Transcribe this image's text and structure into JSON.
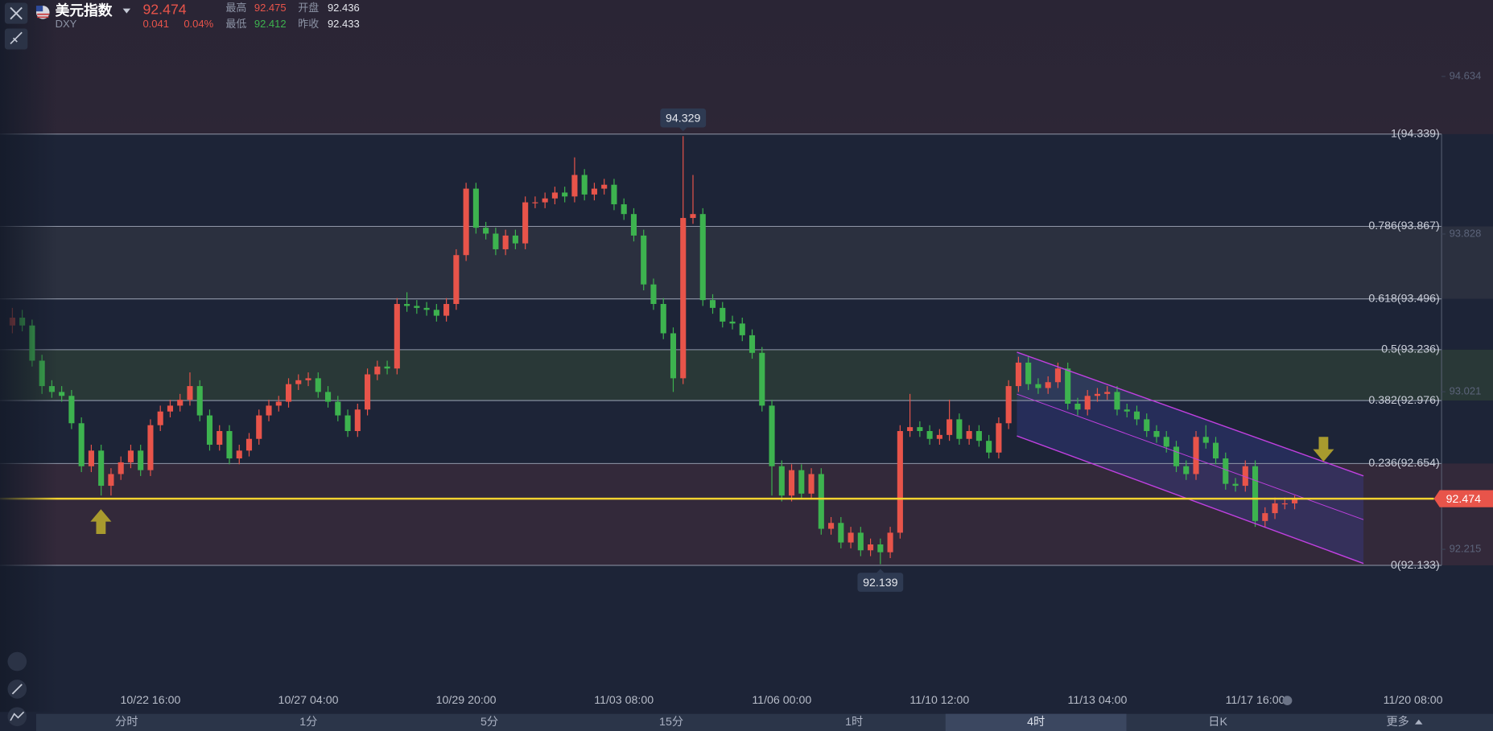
{
  "header": {
    "name": "美元指数",
    "symbol": "DXY",
    "price": 92.474,
    "change": 0.041,
    "change_pct": "0.04%",
    "high_label": "最高",
    "high": 92.475,
    "open_label": "开盘",
    "open": 92.436,
    "low_label": "最低",
    "low": 92.412,
    "prev_close_label": "昨收",
    "prev_close": 92.433
  },
  "tabs": [
    "分时",
    "1分",
    "5分",
    "15分",
    "1时",
    "4时",
    "日K",
    "更多"
  ],
  "chart_data": {
    "type": "candlestick",
    "up_color": "#e8544a",
    "down_color": "#3db34f",
    "ylim": [
      91.383,
      95.025
    ],
    "yticks": [
      94.634,
      93.828,
      93.021,
      92.215
    ],
    "current_price": 92.474,
    "annotations": [
      94.329,
      92.139
    ],
    "fib_levels": [
      {
        "value": 94.339,
        "label": "1(94.339)"
      },
      {
        "value": 93.867,
        "label": "0.786(93.867)"
      },
      {
        "value": 93.496,
        "label": "0.618(93.496)"
      },
      {
        "value": 93.236,
        "label": "0.5(93.236)"
      },
      {
        "value": 92.976,
        "label": "0.382(92.976)"
      },
      {
        "value": 92.654,
        "label": "0.236(92.654)"
      },
      {
        "value": 92.133,
        "label": "0(92.133)"
      }
    ],
    "categories": [
      null,
      null,
      null,
      null,
      null,
      null,
      null,
      null,
      null,
      null,
      null,
      null,
      null,
      null,
      "10/22 16:00",
      null,
      null,
      null,
      null,
      null,
      null,
      null,
      null,
      null,
      null,
      null,
      null,
      null,
      null,
      null,
      "10/27 04:00",
      null,
      null,
      null,
      null,
      null,
      null,
      null,
      null,
      null,
      null,
      null,
      null,
      null,
      null,
      null,
      "10/29 20:00",
      null,
      null,
      null,
      null,
      null,
      null,
      null,
      null,
      null,
      null,
      null,
      null,
      null,
      null,
      null,
      "11/03 08:00",
      null,
      null,
      null,
      null,
      null,
      null,
      null,
      null,
      null,
      null,
      null,
      null,
      null,
      null,
      null,
      "11/06 00:00",
      null,
      null,
      null,
      null,
      null,
      null,
      null,
      null,
      null,
      null,
      null,
      null,
      null,
      null,
      null,
      "11/10 12:00",
      null,
      null,
      null,
      null,
      null,
      null,
      null,
      null,
      null,
      null,
      null,
      null,
      null,
      null,
      null,
      "11/13 04:00",
      null,
      null,
      null,
      null,
      null,
      null,
      null,
      null,
      null,
      null,
      null,
      null,
      null,
      null,
      null,
      "11/17 16:00",
      null,
      null,
      null,
      null,
      null,
      null,
      null,
      null,
      null,
      null,
      null,
      null,
      null,
      null,
      null,
      "11/20 08:00"
    ],
    "open": [
      93.36,
      93.4,
      93.36,
      93.18,
      93.05,
      93.02,
      93.0,
      92.86,
      92.64,
      92.72,
      92.54,
      92.6,
      92.66,
      92.72,
      92.62,
      92.85,
      92.92,
      92.95,
      92.98,
      93.05,
      92.9,
      92.75,
      92.82,
      92.68,
      92.72,
      92.78,
      92.9,
      92.95,
      92.97,
      93.06,
      93.08,
      93.09,
      93.02,
      92.97,
      92.9,
      92.82,
      92.93,
      93.11,
      93.15,
      93.14,
      93.47,
      93.46,
      93.45,
      93.44,
      93.41,
      93.47,
      93.72,
      94.06,
      93.86,
      93.83,
      93.75,
      93.82,
      93.78,
      93.99,
      93.99,
      94.01,
      94.04,
      94.02,
      94.13,
      94.03,
      94.06,
      94.08,
      93.98,
      93.93,
      93.82,
      93.57,
      93.47,
      93.32,
      93.09,
      93.91,
      93.93,
      93.49,
      93.45,
      93.38,
      93.37,
      93.31,
      93.22,
      92.95,
      92.64,
      92.49,
      92.62,
      92.5,
      92.6,
      92.32,
      92.35,
      92.25,
      92.3,
      92.21,
      92.24,
      92.2,
      92.3,
      92.82,
      92.84,
      92.82,
      92.78,
      92.8,
      92.88,
      92.78,
      92.82,
      92.77,
      92.71,
      92.86,
      93.05,
      93.17,
      93.06,
      93.04,
      93.07,
      93.14,
      92.96,
      92.93,
      93.0,
      93.01,
      93.02,
      92.93,
      92.92,
      92.88,
      92.82,
      92.79,
      92.74,
      92.64,
      92.6,
      92.79,
      92.76,
      92.68,
      92.55,
      92.54,
      92.64,
      92.36,
      92.4,
      92.45,
      92.45,
      null,
      null,
      null,
      null,
      null,
      null,
      null,
      null,
      null,
      null,
      null,
      null
    ],
    "high": [
      93.45,
      93.44,
      93.39,
      93.21,
      93.08,
      93.05,
      93.03,
      92.89,
      92.75,
      92.75,
      92.63,
      92.69,
      92.75,
      92.75,
      92.88,
      92.95,
      92.98,
      93.01,
      93.12,
      93.08,
      92.93,
      92.85,
      92.85,
      92.75,
      92.81,
      92.93,
      92.98,
      93.0,
      93.09,
      93.11,
      93.12,
      93.12,
      93.05,
      93.0,
      92.93,
      92.96,
      93.14,
      93.18,
      93.18,
      93.5,
      93.53,
      93.49,
      93.48,
      93.47,
      93.5,
      93.75,
      94.09,
      94.09,
      93.89,
      93.86,
      93.85,
      93.85,
      94.02,
      94.02,
      94.04,
      94.07,
      94.07,
      94.22,
      94.16,
      94.09,
      94.11,
      94.11,
      94.01,
      93.96,
      93.85,
      93.6,
      93.5,
      93.35,
      94.329,
      94.13,
      93.96,
      93.52,
      93.48,
      93.41,
      93.4,
      93.34,
      93.25,
      92.98,
      92.67,
      92.65,
      92.65,
      92.63,
      92.63,
      92.38,
      92.38,
      92.33,
      92.33,
      92.27,
      92.27,
      92.33,
      92.85,
      93.01,
      92.87,
      92.85,
      92.83,
      92.98,
      92.91,
      92.85,
      92.85,
      92.8,
      92.89,
      93.08,
      93.2,
      93.2,
      93.09,
      93.1,
      93.17,
      93.17,
      92.99,
      93.03,
      93.04,
      93.05,
      93.05,
      92.96,
      92.95,
      92.91,
      92.85,
      92.82,
      92.77,
      92.67,
      92.82,
      92.85,
      92.79,
      92.71,
      92.58,
      92.67,
      92.67,
      92.43,
      92.48,
      92.48,
      92.49,
      null,
      null,
      null,
      null,
      null,
      null,
      null,
      null,
      null,
      null,
      null,
      null
    ],
    "low": [
      93.32,
      93.33,
      93.15,
      93.01,
      92.99,
      92.97,
      92.83,
      92.61,
      92.61,
      92.49,
      92.49,
      92.57,
      92.63,
      92.59,
      92.59,
      92.82,
      92.89,
      92.92,
      92.95,
      92.87,
      92.72,
      92.72,
      92.65,
      92.65,
      92.69,
      92.75,
      92.87,
      92.92,
      92.94,
      93.03,
      93.05,
      92.99,
      92.94,
      92.87,
      92.79,
      92.79,
      92.9,
      93.08,
      93.11,
      93.11,
      93.43,
      93.42,
      93.41,
      93.38,
      93.38,
      93.44,
      93.69,
      93.83,
      93.8,
      93.72,
      93.72,
      93.75,
      93.75,
      93.96,
      93.96,
      93.98,
      93.99,
      93.99,
      94.0,
      94.0,
      94.03,
      93.95,
      93.9,
      93.79,
      93.54,
      93.44,
      93.29,
      93.02,
      93.06,
      93.88,
      93.46,
      93.42,
      93.35,
      93.34,
      93.28,
      93.19,
      92.92,
      92.49,
      92.46,
      92.46,
      92.47,
      92.47,
      92.29,
      92.29,
      92.22,
      92.22,
      92.18,
      92.18,
      92.139,
      92.17,
      92.27,
      92.79,
      92.79,
      92.75,
      92.75,
      92.77,
      92.75,
      92.75,
      92.74,
      92.68,
      92.68,
      92.83,
      93.02,
      93.03,
      93.01,
      93.01,
      93.04,
      92.93,
      92.9,
      92.9,
      92.97,
      92.98,
      92.9,
      92.89,
      92.85,
      92.79,
      92.76,
      92.71,
      92.61,
      92.57,
      92.57,
      92.73,
      92.65,
      92.52,
      92.51,
      92.51,
      92.33,
      92.33,
      92.37,
      92.42,
      92.42,
      null,
      null,
      null,
      null,
      null,
      null,
      null,
      null,
      null,
      null,
      null,
      null
    ],
    "close": [
      93.4,
      93.36,
      93.18,
      93.05,
      93.02,
      93.0,
      92.86,
      92.64,
      92.72,
      92.54,
      92.6,
      92.66,
      92.72,
      92.62,
      92.85,
      92.92,
      92.95,
      92.98,
      93.05,
      92.9,
      92.75,
      92.82,
      92.68,
      92.72,
      92.78,
      92.9,
      92.95,
      92.97,
      93.06,
      93.08,
      93.09,
      93.02,
      92.97,
      92.9,
      92.82,
      92.93,
      93.11,
      93.15,
      93.14,
      93.47,
      93.46,
      93.45,
      93.44,
      93.41,
      93.47,
      93.72,
      94.06,
      93.86,
      93.83,
      93.75,
      93.82,
      93.78,
      93.99,
      93.99,
      94.01,
      94.04,
      94.02,
      94.13,
      94.03,
      94.06,
      94.08,
      93.98,
      93.93,
      93.82,
      93.57,
      93.47,
      93.32,
      93.09,
      93.91,
      93.93,
      93.49,
      93.45,
      93.38,
      93.37,
      93.31,
      93.22,
      92.95,
      92.64,
      92.49,
      92.62,
      92.5,
      92.6,
      92.32,
      92.35,
      92.25,
      92.3,
      92.21,
      92.24,
      92.2,
      92.3,
      92.82,
      92.84,
      92.82,
      92.78,
      92.8,
      92.88,
      92.78,
      92.82,
      92.77,
      92.71,
      92.86,
      93.05,
      93.17,
      93.06,
      93.04,
      93.07,
      93.14,
      92.96,
      92.93,
      93.0,
      93.01,
      93.02,
      92.93,
      92.92,
      92.88,
      92.82,
      92.79,
      92.74,
      92.64,
      92.6,
      92.79,
      92.76,
      92.68,
      92.55,
      92.54,
      92.64,
      92.36,
      92.4,
      92.45,
      92.45,
      92.474,
      null,
      null,
      null,
      null,
      null,
      null,
      null,
      null,
      null,
      null,
      null,
      null
    ]
  }
}
